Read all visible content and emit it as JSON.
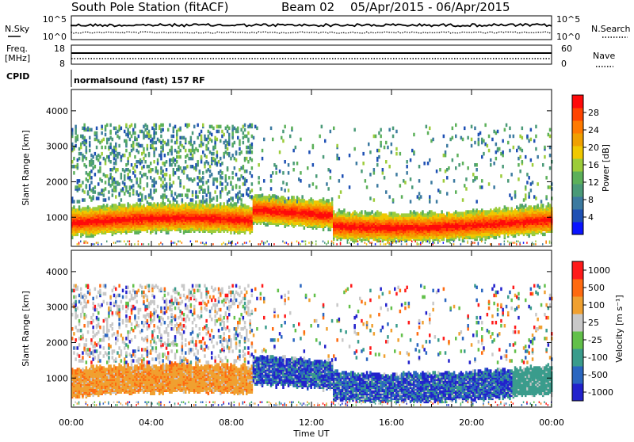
{
  "title": {
    "station": "South Pole Station (fitACF)",
    "beam": "Beam 02",
    "dates": "05/Apr/2015 - 06/Apr/2015"
  },
  "aux_panels": {
    "nsky_label": "N.Sky",
    "nsky_ticks": [
      "10^5",
      "10^0"
    ],
    "nsearch_label": "N.Search",
    "nsearch_ticks": [
      "10^5",
      "10^0"
    ],
    "freq_label_1": "Freq.",
    "freq_label_2": "[MHz]",
    "freq_ticks": [
      "18",
      "8"
    ],
    "nave_label": "Nave",
    "nave_ticks": [
      "60",
      "0"
    ],
    "cpid_label": "CPID",
    "cpid_value": "normalsound (fast) 157 RF"
  },
  "chart_data": [
    {
      "type": "heatmap",
      "name": "power",
      "ylabel": "Slant Range [km]",
      "xlabel": "",
      "x_ticks": [
        "00:00",
        "04:00",
        "08:00",
        "12:00",
        "16:00",
        "20:00",
        "00:00"
      ],
      "x_range_hours": [
        0,
        24
      ],
      "y_ticks": [
        1000,
        2000,
        3000,
        4000
      ],
      "ylim": [
        180,
        4600
      ],
      "colorbar": {
        "label": "Power [dB]",
        "ticks": [
          4,
          8,
          12,
          16,
          20,
          24,
          28
        ],
        "range": [
          0,
          32
        ],
        "colors": [
          "#0a14ff",
          "#1e50b4",
          "#3c7aa0",
          "#4a9a78",
          "#5cb05a",
          "#9ccc3a",
          "#f0c800",
          "#f0a000",
          "#ff7a00",
          "#ff4400",
          "#ff0a0a"
        ]
      }
    },
    {
      "type": "heatmap",
      "name": "velocity",
      "ylabel": "Slant Range [km]",
      "xlabel": "Time UT",
      "x_ticks": [
        "00:00",
        "04:00",
        "08:00",
        "12:00",
        "16:00",
        "20:00",
        "00:00"
      ],
      "x_range_hours": [
        0,
        24
      ],
      "y_ticks": [
        1000,
        2000,
        3000,
        4000
      ],
      "ylim": [
        180,
        4600
      ],
      "colorbar": {
        "label": "Velocity [m s⁻¹]",
        "ticks": [
          "1000",
          "500",
          "100",
          "25",
          "-25",
          "-100",
          "-500",
          "-1000"
        ],
        "colors": [
          "#2222cc",
          "#2a66c0",
          "#3a9c8c",
          "#62c04a",
          "#c8c8c8",
          "#f0a030",
          "#ff6a10",
          "#ff1a1a"
        ]
      }
    }
  ]
}
